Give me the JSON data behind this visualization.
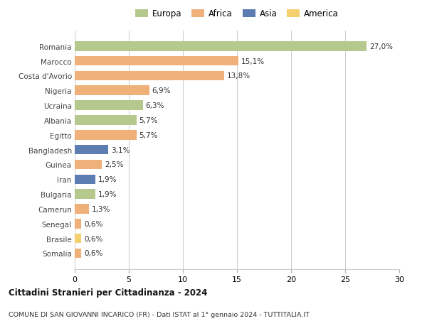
{
  "countries": [
    "Romania",
    "Marocco",
    "Costa d'Avorio",
    "Nigeria",
    "Ucraina",
    "Albania",
    "Egitto",
    "Bangladesh",
    "Guinea",
    "Iran",
    "Bulgaria",
    "Camerun",
    "Senegal",
    "Brasile",
    "Somalia"
  ],
  "values": [
    27.0,
    15.1,
    13.8,
    6.9,
    6.3,
    5.7,
    5.7,
    3.1,
    2.5,
    1.9,
    1.9,
    1.3,
    0.6,
    0.6,
    0.6
  ],
  "labels": [
    "27,0%",
    "15,1%",
    "13,8%",
    "6,9%",
    "6,3%",
    "5,7%",
    "5,7%",
    "3,1%",
    "2,5%",
    "1,9%",
    "1,9%",
    "1,3%",
    "0,6%",
    "0,6%",
    "0,6%"
  ],
  "continents": [
    "Europa",
    "Africa",
    "Africa",
    "Africa",
    "Europa",
    "Europa",
    "Africa",
    "Asia",
    "Africa",
    "Asia",
    "Europa",
    "Africa",
    "Africa",
    "America",
    "Africa"
  ],
  "colors": {
    "Europa": "#b5c98e",
    "Africa": "#f0b07a",
    "Asia": "#5b7db1",
    "America": "#f5d06e"
  },
  "legend_order": [
    "Europa",
    "Africa",
    "Asia",
    "America"
  ],
  "xlim": [
    0,
    30
  ],
  "xticks": [
    0,
    5,
    10,
    15,
    20,
    25,
    30
  ],
  "title": "Cittadini Stranieri per Cittadinanza - 2024",
  "subtitle": "COMUNE DI SAN GIOVANNI INCARICO (FR) - Dati ISTAT al 1° gennaio 2024 - TUTTITALIA.IT",
  "background_color": "#ffffff",
  "grid_color": "#cccccc"
}
